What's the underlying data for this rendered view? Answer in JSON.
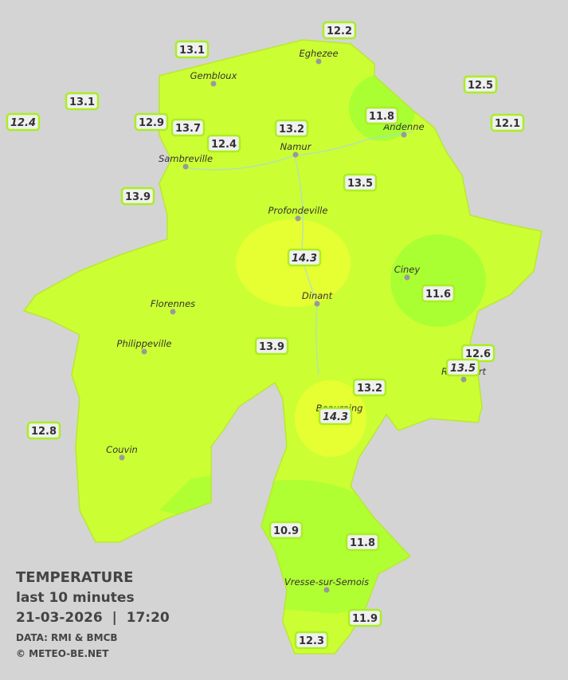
{
  "legend": {
    "title": "TEMPERATURE",
    "subtitle": "last 10 minutes",
    "datetime": "21-03-2026  |  17:20",
    "source": "DATA: RMI & BMCB",
    "copyright": "© METEO-BE.NET"
  },
  "towns": [
    "Eghezee",
    "Gembloux",
    "Andenne",
    "Namur",
    "Sambreville",
    "Profondeville",
    "Ciney",
    "Dinant",
    "Florennes",
    "Philippeville",
    "Rochefort",
    "Beauraing",
    "Couvin",
    "Vresse-sur-Semois"
  ],
  "stations": [
    13.1,
    12.2,
    13.1,
    12.5,
    12.4,
    12.9,
    13.7,
    11.8,
    13.2,
    12.1,
    12.4,
    13.5,
    13.9,
    14.3,
    11.6,
    13.9,
    12.6,
    13.5,
    13.2,
    14.3,
    12.8,
    10.9,
    11.8,
    11.9,
    12.3
  ]
}
